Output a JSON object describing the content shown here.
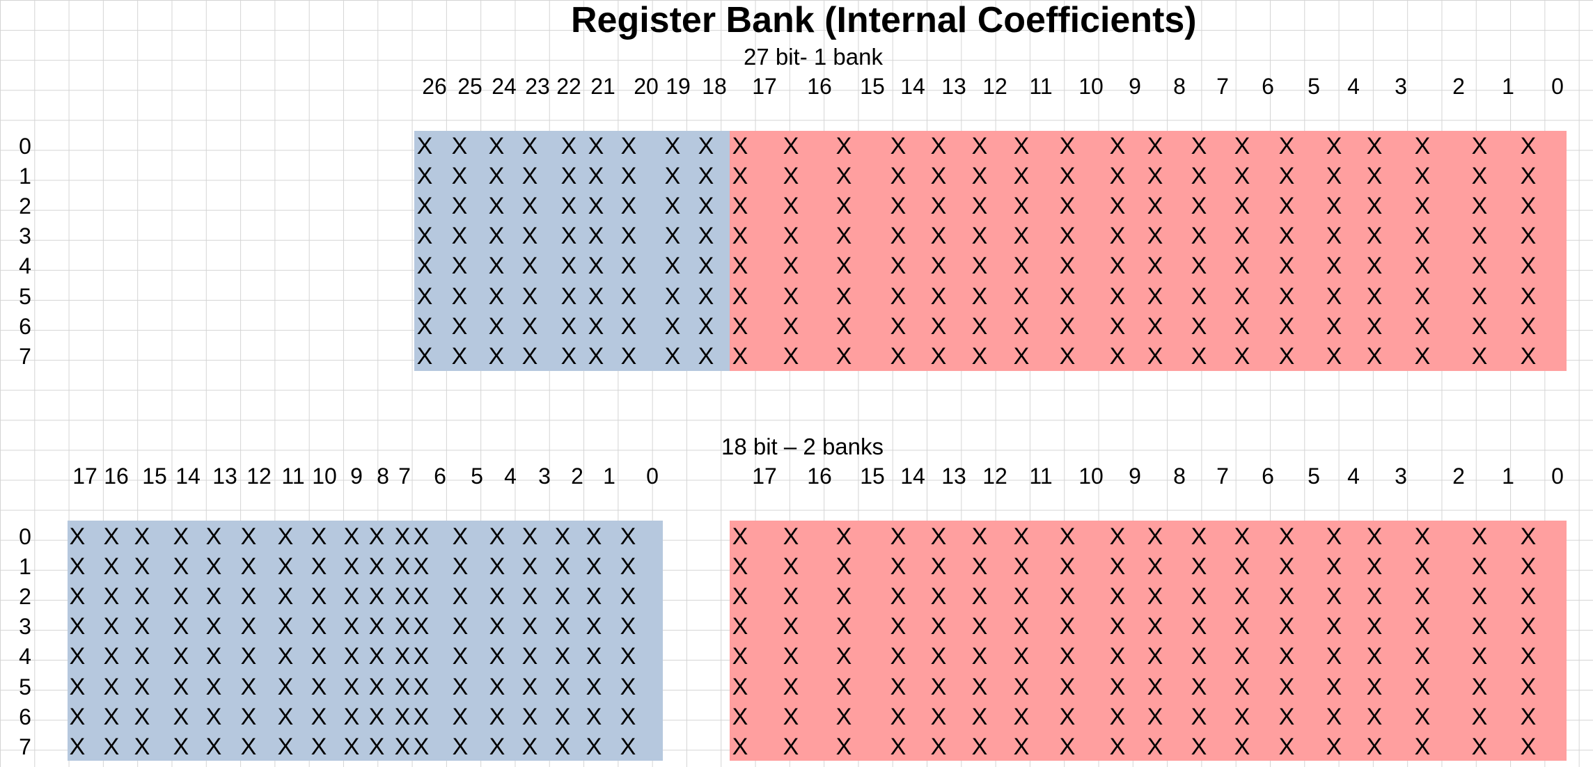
{
  "title": "Register Bank (Internal Coefficients)",
  "colors": {
    "blue_block": "#b6c8de",
    "red_block": "#ff9f9f",
    "grid_line": "#d4d4d4"
  },
  "mark": "X",
  "row_labels": [
    "0",
    "1",
    "2",
    "3",
    "4",
    "5",
    "6",
    "7"
  ],
  "section_top": {
    "subtitle": "27 bit- 1 bank",
    "blue_bits": [
      "26",
      "25",
      "24",
      "23",
      "22",
      "21",
      "20",
      "19",
      "18"
    ],
    "red_bits": [
      "17",
      "16",
      "15",
      "14",
      "13",
      "12",
      "11",
      "10",
      "9",
      "8",
      "7",
      "6",
      "5",
      "4",
      "3",
      "2",
      "1",
      "0"
    ]
  },
  "section_bottom": {
    "subtitle": "18 bit – 2 banks",
    "blue_bits": [
      "17",
      "16",
      "15",
      "14",
      "13",
      "12",
      "11",
      "10",
      "9",
      "8",
      "7",
      "6",
      "5",
      "4",
      "3",
      "2",
      "1",
      "0"
    ],
    "red_bits": [
      "17",
      "16",
      "15",
      "14",
      "13",
      "12",
      "11",
      "10",
      "9",
      "8",
      "7",
      "6",
      "5",
      "4",
      "3",
      "2",
      "1",
      "0"
    ]
  }
}
